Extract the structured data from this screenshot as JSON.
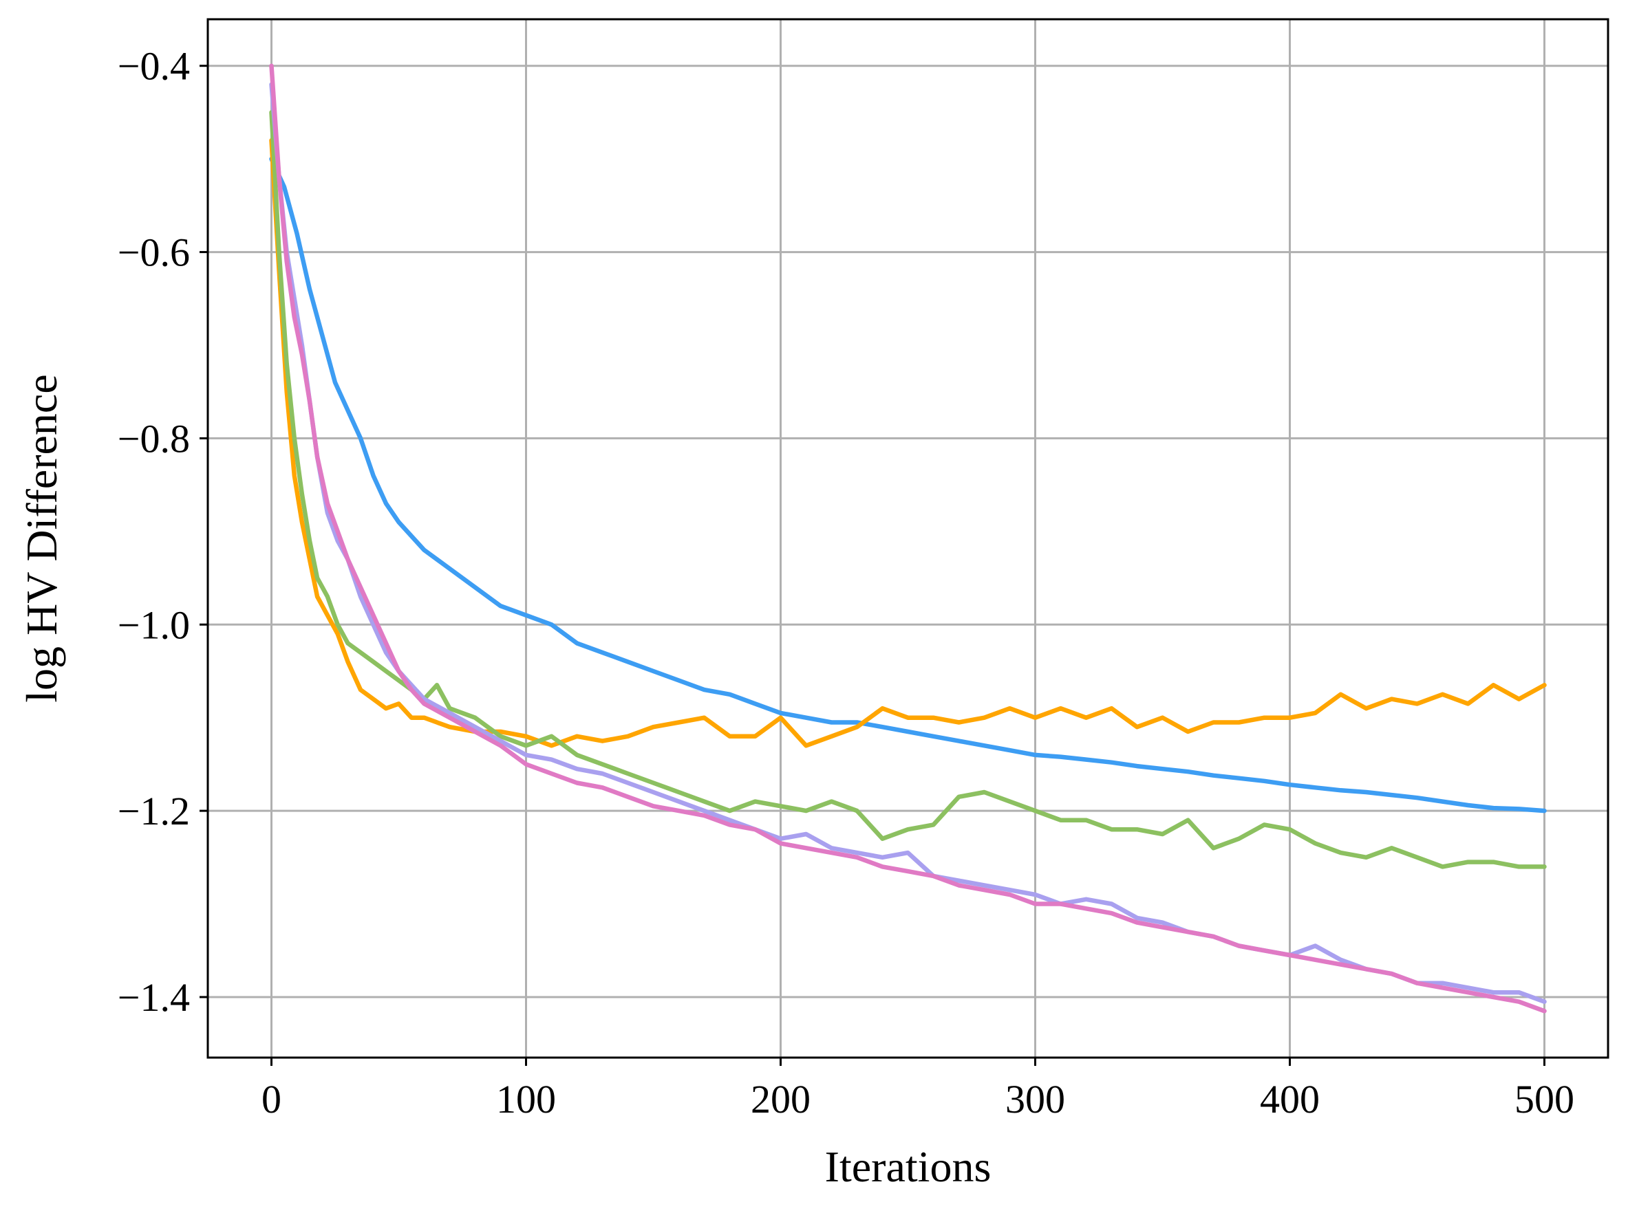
{
  "chart_data": {
    "type": "line",
    "title": "",
    "xlabel": "Iterations",
    "ylabel": "log HV Difference",
    "xlim": [
      -25,
      525
    ],
    "ylim": [
      -1.465,
      -0.35
    ],
    "xticks": [
      0,
      100,
      200,
      300,
      400,
      500
    ],
    "xtick_labels": [
      "0",
      "100",
      "200",
      "300",
      "400",
      "500"
    ],
    "yticks": [
      -0.4,
      -0.6,
      -0.8,
      -1.0,
      -1.2,
      -1.4
    ],
    "ytick_labels": [
      "−0.4",
      "−0.6",
      "−0.8",
      "−1.0",
      "−1.2",
      "−1.4"
    ],
    "grid": true,
    "legend": "none",
    "series": [
      {
        "color": "#3d9df3",
        "x": [
          0,
          5,
          10,
          15,
          20,
          25,
          30,
          35,
          40,
          45,
          50,
          60,
          70,
          80,
          90,
          100,
          110,
          120,
          130,
          140,
          150,
          160,
          170,
          180,
          190,
          200,
          210,
          220,
          230,
          240,
          250,
          260,
          270,
          280,
          290,
          300,
          310,
          320,
          330,
          340,
          350,
          360,
          370,
          380,
          390,
          400,
          410,
          420,
          430,
          440,
          450,
          460,
          470,
          480,
          490,
          500
        ],
        "y": [
          -0.5,
          -0.53,
          -0.58,
          -0.64,
          -0.69,
          -0.74,
          -0.77,
          -0.8,
          -0.84,
          -0.87,
          -0.89,
          -0.92,
          -0.94,
          -0.96,
          -0.98,
          -0.99,
          -1.0,
          -1.02,
          -1.03,
          -1.04,
          -1.05,
          -1.06,
          -1.07,
          -1.075,
          -1.085,
          -1.095,
          -1.1,
          -1.105,
          -1.105,
          -1.11,
          -1.115,
          -1.12,
          -1.125,
          -1.13,
          -1.135,
          -1.14,
          -1.142,
          -1.145,
          -1.148,
          -1.152,
          -1.155,
          -1.158,
          -1.162,
          -1.165,
          -1.168,
          -1.172,
          -1.175,
          -1.178,
          -1.18,
          -1.183,
          -1.186,
          -1.19,
          -1.194,
          -1.197,
          -1.198,
          -1.2
        ]
      },
      {
        "color": "#ffa500",
        "x": [
          0,
          3,
          6,
          9,
          12,
          15,
          18,
          22,
          26,
          30,
          35,
          40,
          45,
          50,
          55,
          60,
          65,
          70,
          80,
          90,
          100,
          110,
          120,
          130,
          140,
          150,
          160,
          170,
          180,
          190,
          200,
          210,
          220,
          230,
          240,
          250,
          260,
          270,
          280,
          290,
          300,
          310,
          320,
          330,
          340,
          350,
          360,
          370,
          380,
          390,
          400,
          410,
          420,
          430,
          440,
          450,
          460,
          470,
          480,
          490,
          500
        ],
        "y": [
          -0.48,
          -0.62,
          -0.75,
          -0.84,
          -0.89,
          -0.93,
          -0.97,
          -0.99,
          -1.01,
          -1.04,
          -1.07,
          -1.08,
          -1.09,
          -1.085,
          -1.1,
          -1.1,
          -1.105,
          -1.11,
          -1.115,
          -1.115,
          -1.12,
          -1.13,
          -1.12,
          -1.125,
          -1.12,
          -1.11,
          -1.105,
          -1.1,
          -1.12,
          -1.12,
          -1.1,
          -1.13,
          -1.12,
          -1.11,
          -1.09,
          -1.1,
          -1.1,
          -1.105,
          -1.1,
          -1.09,
          -1.1,
          -1.09,
          -1.1,
          -1.09,
          -1.11,
          -1.1,
          -1.115,
          -1.105,
          -1.105,
          -1.1,
          -1.1,
          -1.095,
          -1.075,
          -1.09,
          -1.08,
          -1.085,
          -1.075,
          -1.085,
          -1.065,
          -1.08,
          -1.065
        ]
      },
      {
        "color": "#8cc060",
        "x": [
          0,
          3,
          6,
          9,
          12,
          15,
          18,
          22,
          26,
          30,
          35,
          40,
          45,
          50,
          55,
          60,
          65,
          70,
          80,
          90,
          100,
          110,
          120,
          130,
          140,
          150,
          160,
          170,
          180,
          190,
          200,
          210,
          220,
          230,
          240,
          250,
          260,
          270,
          280,
          290,
          300,
          310,
          320,
          330,
          340,
          350,
          360,
          370,
          380,
          390,
          400,
          410,
          420,
          430,
          440,
          450,
          460,
          470,
          480,
          490,
          500
        ],
        "y": [
          -0.45,
          -0.6,
          -0.72,
          -0.8,
          -0.86,
          -0.91,
          -0.95,
          -0.97,
          -1.0,
          -1.02,
          -1.03,
          -1.04,
          -1.05,
          -1.06,
          -1.07,
          -1.08,
          -1.065,
          -1.09,
          -1.1,
          -1.12,
          -1.13,
          -1.12,
          -1.14,
          -1.15,
          -1.16,
          -1.17,
          -1.18,
          -1.19,
          -1.2,
          -1.19,
          -1.195,
          -1.2,
          -1.19,
          -1.2,
          -1.23,
          -1.22,
          -1.215,
          -1.185,
          -1.18,
          -1.19,
          -1.2,
          -1.21,
          -1.21,
          -1.22,
          -1.22,
          -1.225,
          -1.21,
          -1.24,
          -1.23,
          -1.215,
          -1.22,
          -1.235,
          -1.245,
          -1.25,
          -1.24,
          -1.25,
          -1.26,
          -1.255,
          -1.255,
          -1.26,
          -1.26
        ]
      },
      {
        "color": "#a9a0ef",
        "x": [
          0,
          3,
          6,
          9,
          12,
          15,
          18,
          22,
          26,
          30,
          35,
          40,
          45,
          50,
          55,
          60,
          70,
          80,
          90,
          100,
          110,
          120,
          130,
          140,
          150,
          160,
          170,
          180,
          190,
          200,
          210,
          220,
          230,
          240,
          250,
          260,
          270,
          280,
          290,
          300,
          310,
          320,
          330,
          340,
          350,
          360,
          370,
          380,
          390,
          400,
          410,
          420,
          430,
          440,
          450,
          460,
          470,
          480,
          490,
          500
        ],
        "y": [
          -0.42,
          -0.52,
          -0.6,
          -0.65,
          -0.7,
          -0.76,
          -0.82,
          -0.88,
          -0.91,
          -0.93,
          -0.97,
          -1.0,
          -1.03,
          -1.05,
          -1.065,
          -1.08,
          -1.095,
          -1.11,
          -1.125,
          -1.14,
          -1.145,
          -1.155,
          -1.16,
          -1.17,
          -1.18,
          -1.19,
          -1.2,
          -1.21,
          -1.22,
          -1.23,
          -1.225,
          -1.24,
          -1.245,
          -1.25,
          -1.245,
          -1.27,
          -1.275,
          -1.28,
          -1.285,
          -1.29,
          -1.3,
          -1.295,
          -1.3,
          -1.315,
          -1.32,
          -1.33,
          -1.335,
          -1.345,
          -1.35,
          -1.355,
          -1.345,
          -1.36,
          -1.37,
          -1.375,
          -1.385,
          -1.385,
          -1.39,
          -1.395,
          -1.395,
          -1.405
        ]
      },
      {
        "color": "#e07ac4",
        "x": [
          0,
          3,
          6,
          9,
          12,
          15,
          18,
          22,
          26,
          30,
          35,
          40,
          45,
          50,
          55,
          60,
          70,
          80,
          90,
          100,
          110,
          120,
          130,
          140,
          150,
          160,
          170,
          180,
          190,
          200,
          210,
          220,
          230,
          240,
          250,
          260,
          270,
          280,
          290,
          300,
          310,
          320,
          330,
          340,
          350,
          360,
          370,
          380,
          390,
          400,
          410,
          420,
          430,
          440,
          450,
          460,
          470,
          480,
          490,
          500
        ],
        "y": [
          -0.4,
          -0.52,
          -0.61,
          -0.67,
          -0.71,
          -0.76,
          -0.82,
          -0.87,
          -0.9,
          -0.93,
          -0.96,
          -0.99,
          -1.02,
          -1.05,
          -1.07,
          -1.085,
          -1.1,
          -1.115,
          -1.13,
          -1.15,
          -1.16,
          -1.17,
          -1.175,
          -1.185,
          -1.195,
          -1.2,
          -1.205,
          -1.215,
          -1.22,
          -1.235,
          -1.24,
          -1.245,
          -1.25,
          -1.26,
          -1.265,
          -1.27,
          -1.28,
          -1.285,
          -1.29,
          -1.3,
          -1.3,
          -1.305,
          -1.31,
          -1.32,
          -1.325,
          -1.33,
          -1.335,
          -1.345,
          -1.35,
          -1.355,
          -1.36,
          -1.365,
          -1.37,
          -1.375,
          -1.385,
          -1.39,
          -1.395,
          -1.4,
          -1.405,
          -1.415
        ]
      }
    ]
  }
}
